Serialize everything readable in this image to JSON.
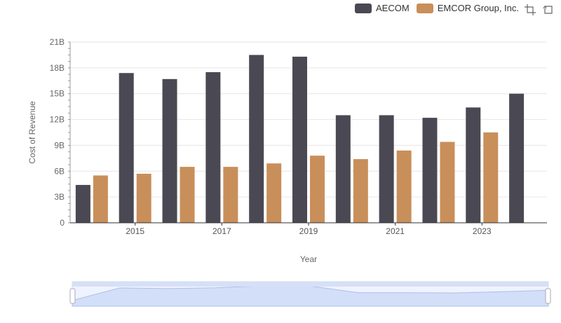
{
  "colors": {
    "aecom": "#4a4953",
    "emcor": "#c98f5a",
    "grid": "#e6e6e6",
    "axis": "#333333"
  },
  "legend": {
    "aecom": "AECOM",
    "emcor": "EMCOR Group, Inc."
  },
  "toolbox": [
    "zoom-icon",
    "restore-icon"
  ],
  "chart_data": {
    "type": "bar",
    "xlabel": "Year",
    "ylabel": "Cost of Revenue",
    "ylim": [
      0,
      21000000000
    ],
    "y_ticks": [
      "0",
      "3B",
      "6B",
      "9B",
      "12B",
      "15B",
      "18B",
      "21B"
    ],
    "x_tick_labels": [
      "2015",
      "2017",
      "2019",
      "2021",
      "2023"
    ],
    "categories": [
      "2014",
      "2015",
      "2016",
      "2017",
      "2018",
      "2019",
      "2020",
      "2021",
      "2022",
      "2023",
      "2024"
    ],
    "series": [
      {
        "name": "AECOM",
        "values": [
          4400000000,
          17400000000,
          16700000000,
          17500000000,
          19500000000,
          19300000000,
          12500000000,
          12500000000,
          12200000000,
          13400000000,
          15000000000
        ]
      },
      {
        "name": "EMCOR Group, Inc.",
        "values": [
          5500000000,
          5700000000,
          6500000000,
          6500000000,
          6900000000,
          7800000000,
          7400000000,
          8400000000,
          9400000000,
          10500000000,
          null
        ]
      }
    ],
    "grid": true,
    "legend_position": "top-right",
    "datazoom": true
  }
}
